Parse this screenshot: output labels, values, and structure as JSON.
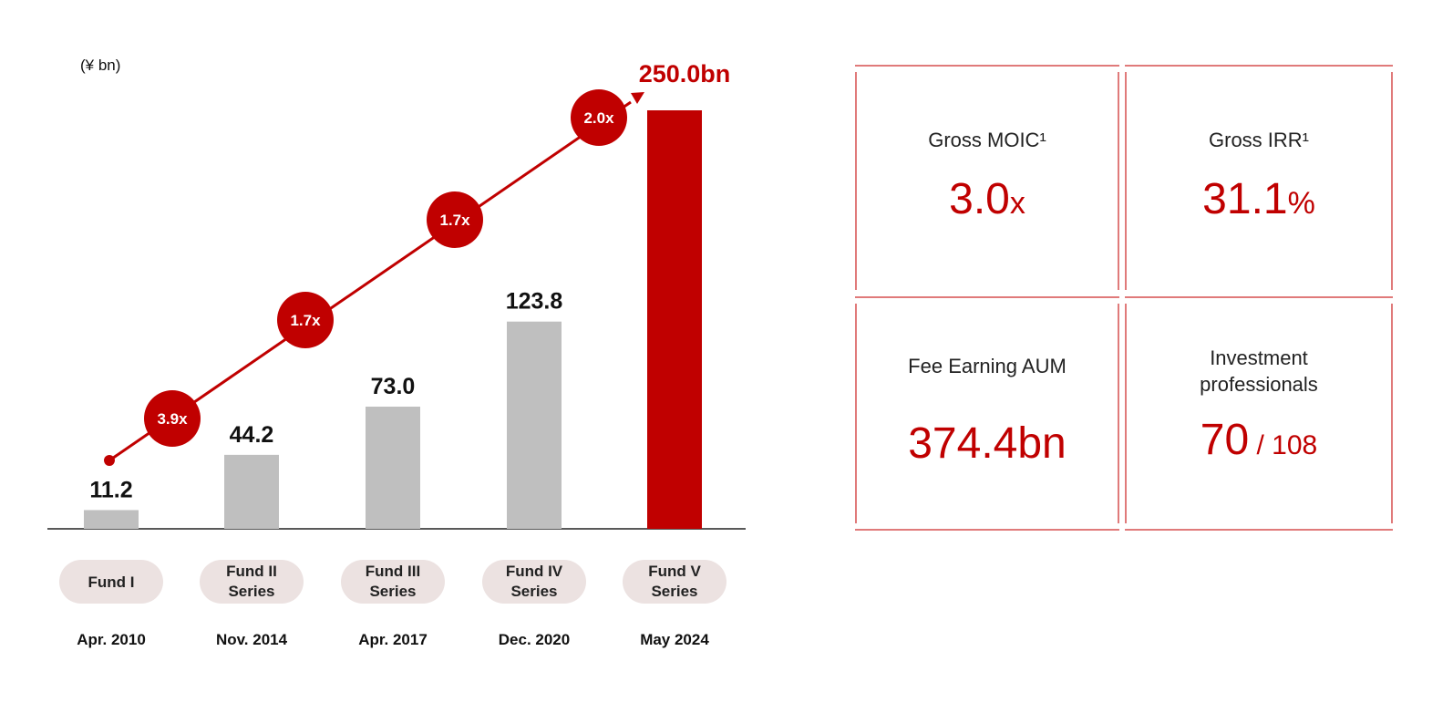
{
  "chart_data": {
    "type": "bar",
    "unit_label": "(¥ bn)",
    "categories": [
      "Fund I",
      "Fund II Series",
      "Fund III Series",
      "Fund IV Series",
      "Fund V Series"
    ],
    "category_lines": [
      [
        "Fund I"
      ],
      [
        "Fund II",
        "Series"
      ],
      [
        "Fund III",
        "Series"
      ],
      [
        "Fund IV",
        "Series"
      ],
      [
        "Fund V",
        "Series"
      ]
    ],
    "dates": [
      "Apr. 2010",
      "Nov. 2014",
      "Apr. 2017",
      "Dec. 2020",
      "May 2024"
    ],
    "values": [
      11.2,
      44.2,
      73.0,
      123.8,
      250.0
    ],
    "value_labels": [
      "11.2",
      "44.2",
      "73.0",
      "123.8",
      "250.0bn"
    ],
    "growth_multiples": [
      "3.9x",
      "1.7x",
      "1.7x",
      "2.0x"
    ],
    "ylim": [
      0,
      250
    ],
    "colors": {
      "bar": "#bfbfbf",
      "highlight_bar": "#c00000",
      "accent": "#c00000",
      "pill": "#ece2e1"
    }
  },
  "metrics": {
    "moic": {
      "label": "Gross MOIC¹",
      "value": "3.0",
      "suffix": "x"
    },
    "irr": {
      "label": "Gross IRR¹",
      "value": "31.1",
      "suffix": "%"
    },
    "aum": {
      "label": "Fee Earning AUM",
      "value": "374.4bn"
    },
    "professionals": {
      "label_line1": "Investment",
      "label_line2": "professionals",
      "value": "70",
      "separator": "/",
      "total": "108"
    }
  }
}
